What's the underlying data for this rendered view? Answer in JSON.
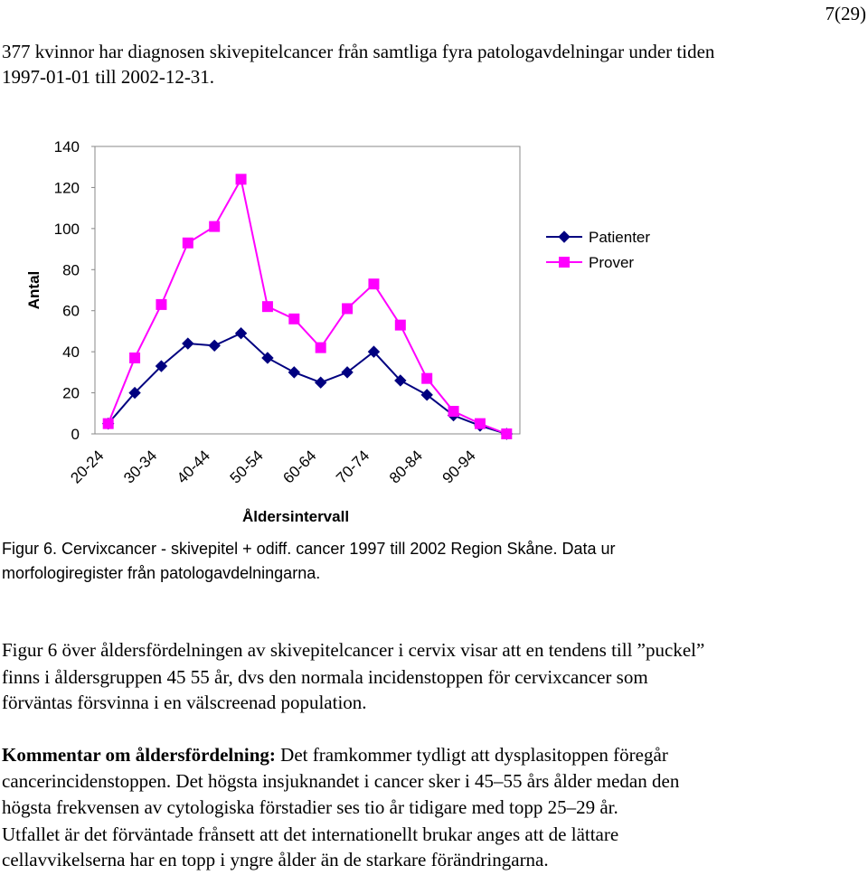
{
  "page_number": "7(29)",
  "intro": [
    "377 kvinnor har diagnosen skivepitelcancer från samtliga fyra patologavdelningar under tiden",
    "1997-01-01 till 2002-12-31."
  ],
  "chart_data": {
    "type": "line",
    "y_label": "Antal",
    "x_label": "Åldersintervall",
    "categories": [
      "20-24",
      null,
      "30-34",
      null,
      "40-44",
      null,
      "50-54",
      null,
      "60-64",
      null,
      "70-74",
      null,
      "80-84",
      null,
      "90-94",
      null
    ],
    "series": [
      {
        "name": "Patienter",
        "color": "#000080",
        "marker": "diamond",
        "values": [
          5,
          20,
          33,
          44,
          43,
          49,
          37,
          30,
          25,
          30,
          40,
          26,
          19,
          9,
          4,
          0
        ]
      },
      {
        "name": "Prover",
        "color": "#ff00ff",
        "marker": "square",
        "values": [
          5,
          37,
          63,
          93,
          101,
          124,
          62,
          56,
          42,
          61,
          73,
          53,
          27,
          11,
          5,
          0
        ]
      }
    ],
    "ylim": [
      0,
      140
    ],
    "yticks": [
      0,
      20,
      40,
      60,
      80,
      100,
      120,
      140
    ],
    "grid": false,
    "legend": "right"
  },
  "caption": [
    "Figur 6. Cervixcancer - skivepitel + odiff. cancer 1997 till 2002 Region Skåne. Data ur",
    "morfologiregister från patologavdelningarna."
  ],
  "paragraph1": [
    "Figur 6 över åldersfördelningen av skivepitelcancer i cervix visar att en tendens till ”puckel”",
    "finns i åldersgruppen 45 55 år, dvs den normala incidenstoppen för cervixcancer som",
    "förväntas försvinna i en välscreenad population."
  ],
  "paragraph2": {
    "bold": "Kommentar om åldersfördelning:",
    "lines": [
      " Det framkommer tydligt att dysplasitoppen föregår",
      "cancerincidenstoppen. Det högsta insjuknandet i cancer sker i 45–55 års ålder medan den",
      "högsta frekvensen av cytologiska förstadier ses tio år tidigare med topp 25–29 år.",
      "Utfallet är det förväntade frånsett att det internationellt brukar anges att de lättare",
      "cellavvikelserna har en topp i yngre ålder än de starkare förändringarna."
    ]
  }
}
